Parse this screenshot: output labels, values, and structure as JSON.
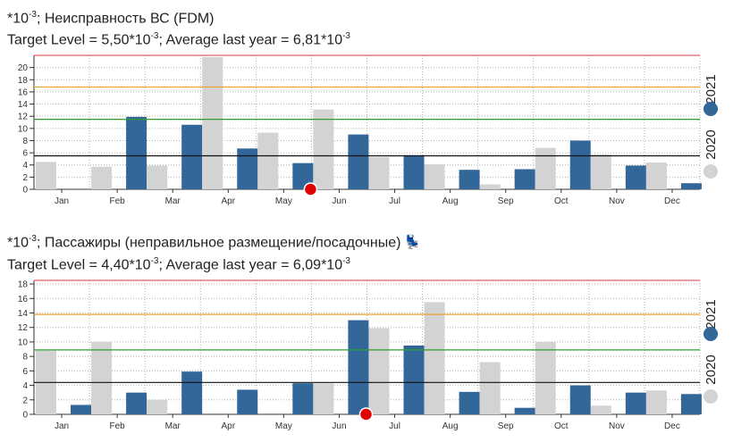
{
  "colors": {
    "current": "#336699",
    "previous": "#d3d3d3",
    "red_line": "#e06060",
    "orange_line": "#f0a030",
    "green_line": "#2e9e2e",
    "target_line": "#111111",
    "marker": "#e00000",
    "grid": "#b0b0b0"
  },
  "chart_data": [
    {
      "type": "bar",
      "title_prefix": "*10",
      "title_exp": "-3",
      "title_text": "; Неисправность ВС (FDM)",
      "target_prefix": "Target Level = 5,50*10",
      "target_exp": "-3",
      "target_mid": "; Average last year = 6,81*10",
      "target_exp2": "-3",
      "categories": [
        "Jan",
        "Feb",
        "Mar",
        "Apr",
        "May",
        "Jun",
        "Jul",
        "Aug",
        "Sep",
        "Oct",
        "Nov",
        "Dec"
      ],
      "series": [
        {
          "name": "2020",
          "values": [
            4.5,
            3.7,
            3.9,
            21.7,
            9.3,
            13.1,
            5.3,
            4.1,
            0.8,
            6.8,
            5.7,
            4.4
          ]
        },
        {
          "name": "2021",
          "values": [
            0,
            11.9,
            10.6,
            6.7,
            4.3,
            9.0,
            5.6,
            3.2,
            3.3,
            8.0,
            3.9,
            1.0
          ]
        }
      ],
      "ylim": [
        0,
        22
      ],
      "yticks": [
        0,
        2,
        4,
        6,
        8,
        10,
        12,
        14,
        16,
        18,
        20
      ],
      "lines": {
        "red": 22,
        "orange": 16.8,
        "green": 11.5,
        "target": 5.5
      },
      "marker_month": "Jun",
      "legend": [
        "2021",
        "2020"
      ]
    },
    {
      "type": "bar",
      "title_prefix": "*10",
      "title_exp": "-3",
      "title_text": "; Пассажиры (неправильное размещение/посадочные)",
      "target_prefix": "Target Level = 4,40*10",
      "target_exp": "-3",
      "target_mid": "; Average last year = 6,09*10",
      "target_exp2": "-3",
      "categories": [
        "Jan",
        "Feb",
        "Mar",
        "Apr",
        "May",
        "Jun",
        "Jul",
        "Aug",
        "Sep",
        "Oct",
        "Nov",
        "Dec"
      ],
      "series": [
        {
          "name": "2020",
          "values": [
            8.8,
            10.0,
            2.0,
            0,
            0,
            4.3,
            11.9,
            15.5,
            7.2,
            10.0,
            1.2,
            3.3
          ]
        },
        {
          "name": "2021",
          "values": [
            1.3,
            3.0,
            5.9,
            3.4,
            4.3,
            13.0,
            9.5,
            3.1,
            0.9,
            4.0,
            3.0,
            2.8
          ]
        }
      ],
      "ylim": [
        0,
        18.5
      ],
      "yticks": [
        0,
        2,
        4,
        6,
        8,
        10,
        12,
        14,
        16,
        18
      ],
      "lines": {
        "red": 18.5,
        "orange": 13.8,
        "green": 8.9,
        "target": 4.4
      },
      "marker_month": "Jul",
      "legend": [
        "2021",
        "2020"
      ]
    }
  ]
}
